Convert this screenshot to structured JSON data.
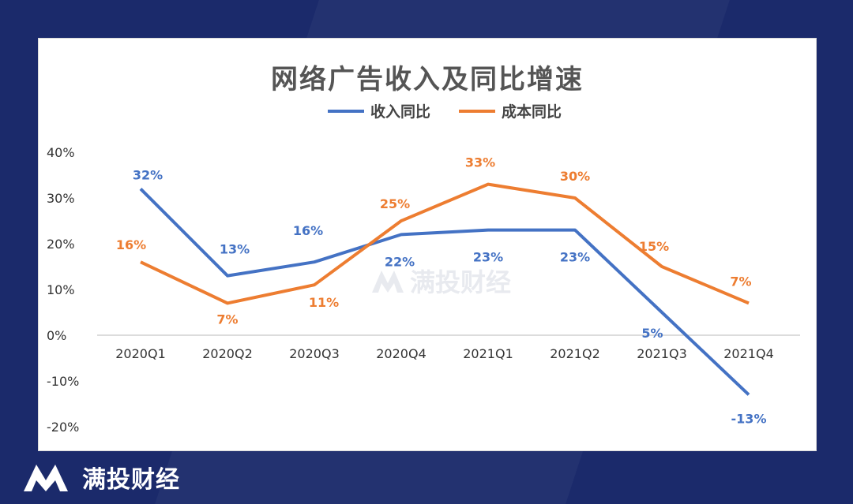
{
  "chart_data": {
    "type": "line",
    "title": "网络广告收入及同比增速",
    "categories": [
      "2020Q1",
      "2020Q2",
      "2020Q3",
      "2020Q4",
      "2021Q1",
      "2021Q2",
      "2021Q3",
      "2021Q4"
    ],
    "series": [
      {
        "name": "收入同比",
        "color": "#4472c4",
        "values": [
          32,
          13,
          16,
          22,
          23,
          23,
          5,
          -13
        ],
        "labels": [
          "32%",
          "13%",
          "16%",
          "22%",
          "23%",
          "23%",
          "5%",
          "-13%"
        ]
      },
      {
        "name": "成本同比",
        "color": "#ed7d31",
        "values": [
          16,
          7,
          11,
          25,
          33,
          30,
          15,
          7
        ],
        "labels": [
          "16%",
          "7%",
          "11%",
          "25%",
          "33%",
          "30%",
          "15%",
          "7%"
        ]
      }
    ],
    "yticks": [
      "40%",
      "30%",
      "20%",
      "10%",
      "0%",
      "-10%",
      "-20%"
    ],
    "ylim": [
      -20,
      40
    ],
    "grid": false,
    "legend": "top"
  },
  "brand": {
    "name": "满投财经",
    "logo": "mt-logo-icon"
  },
  "watermark": {
    "text": "满投财经"
  }
}
